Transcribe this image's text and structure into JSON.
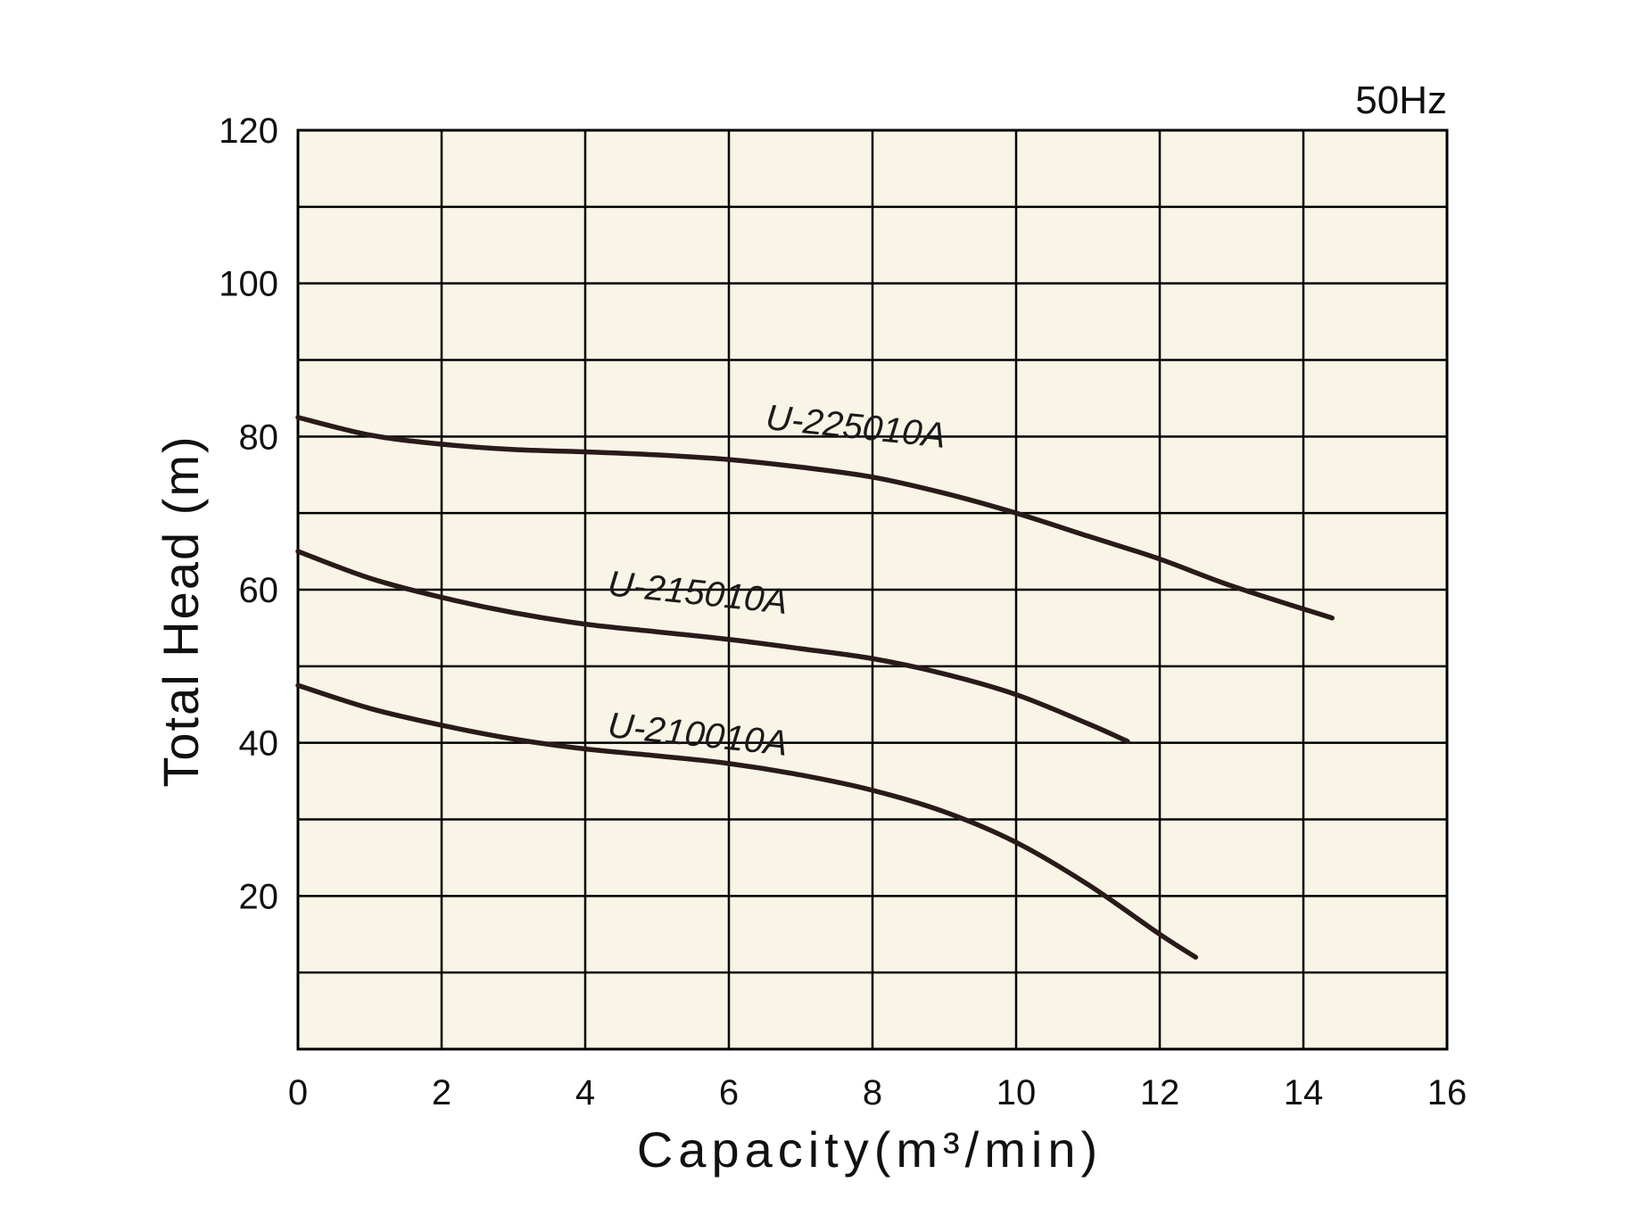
{
  "chart_data": {
    "type": "line",
    "frequency_label": "50Hz",
    "xlabel": "Capacity(m³/min)",
    "ylabel": "Total Head (m)",
    "xlim": [
      0,
      16
    ],
    "ylim": [
      0,
      120
    ],
    "x_ticks": [
      0,
      2,
      4,
      6,
      8,
      10,
      12,
      14,
      16
    ],
    "y_ticks": [
      20,
      40,
      60,
      80,
      100,
      120
    ],
    "grid": true,
    "plot_background": "#f8f5e6",
    "line_color": "#2a1a1a",
    "series": [
      {
        "name": "U-225010A",
        "x": [
          0,
          1,
          2,
          3,
          4,
          5,
          6,
          7,
          8,
          9,
          10,
          11,
          12,
          13,
          14.4
        ],
        "y": [
          82.5,
          80.2,
          79,
          78.3,
          78,
          77.6,
          77,
          76,
          74.7,
          72.6,
          70,
          67,
          64,
          60.5,
          56.3
        ]
      },
      {
        "name": "U-215010A",
        "x": [
          0,
          1,
          2,
          3,
          4,
          5,
          6,
          7,
          8,
          9,
          10,
          11,
          11.55
        ],
        "y": [
          65,
          61.5,
          59,
          57,
          55.5,
          54.5,
          53.5,
          52.3,
          51,
          49,
          46.3,
          42.5,
          40.2
        ]
      },
      {
        "name": "U-210010A",
        "x": [
          0,
          1,
          2,
          3,
          4,
          5,
          6,
          7,
          8,
          9,
          10,
          11,
          12,
          12.5
        ],
        "y": [
          47.5,
          44.5,
          42.3,
          40.5,
          39.2,
          38.3,
          37.3,
          35.8,
          33.8,
          31,
          27,
          21.5,
          15,
          12
        ]
      }
    ]
  }
}
